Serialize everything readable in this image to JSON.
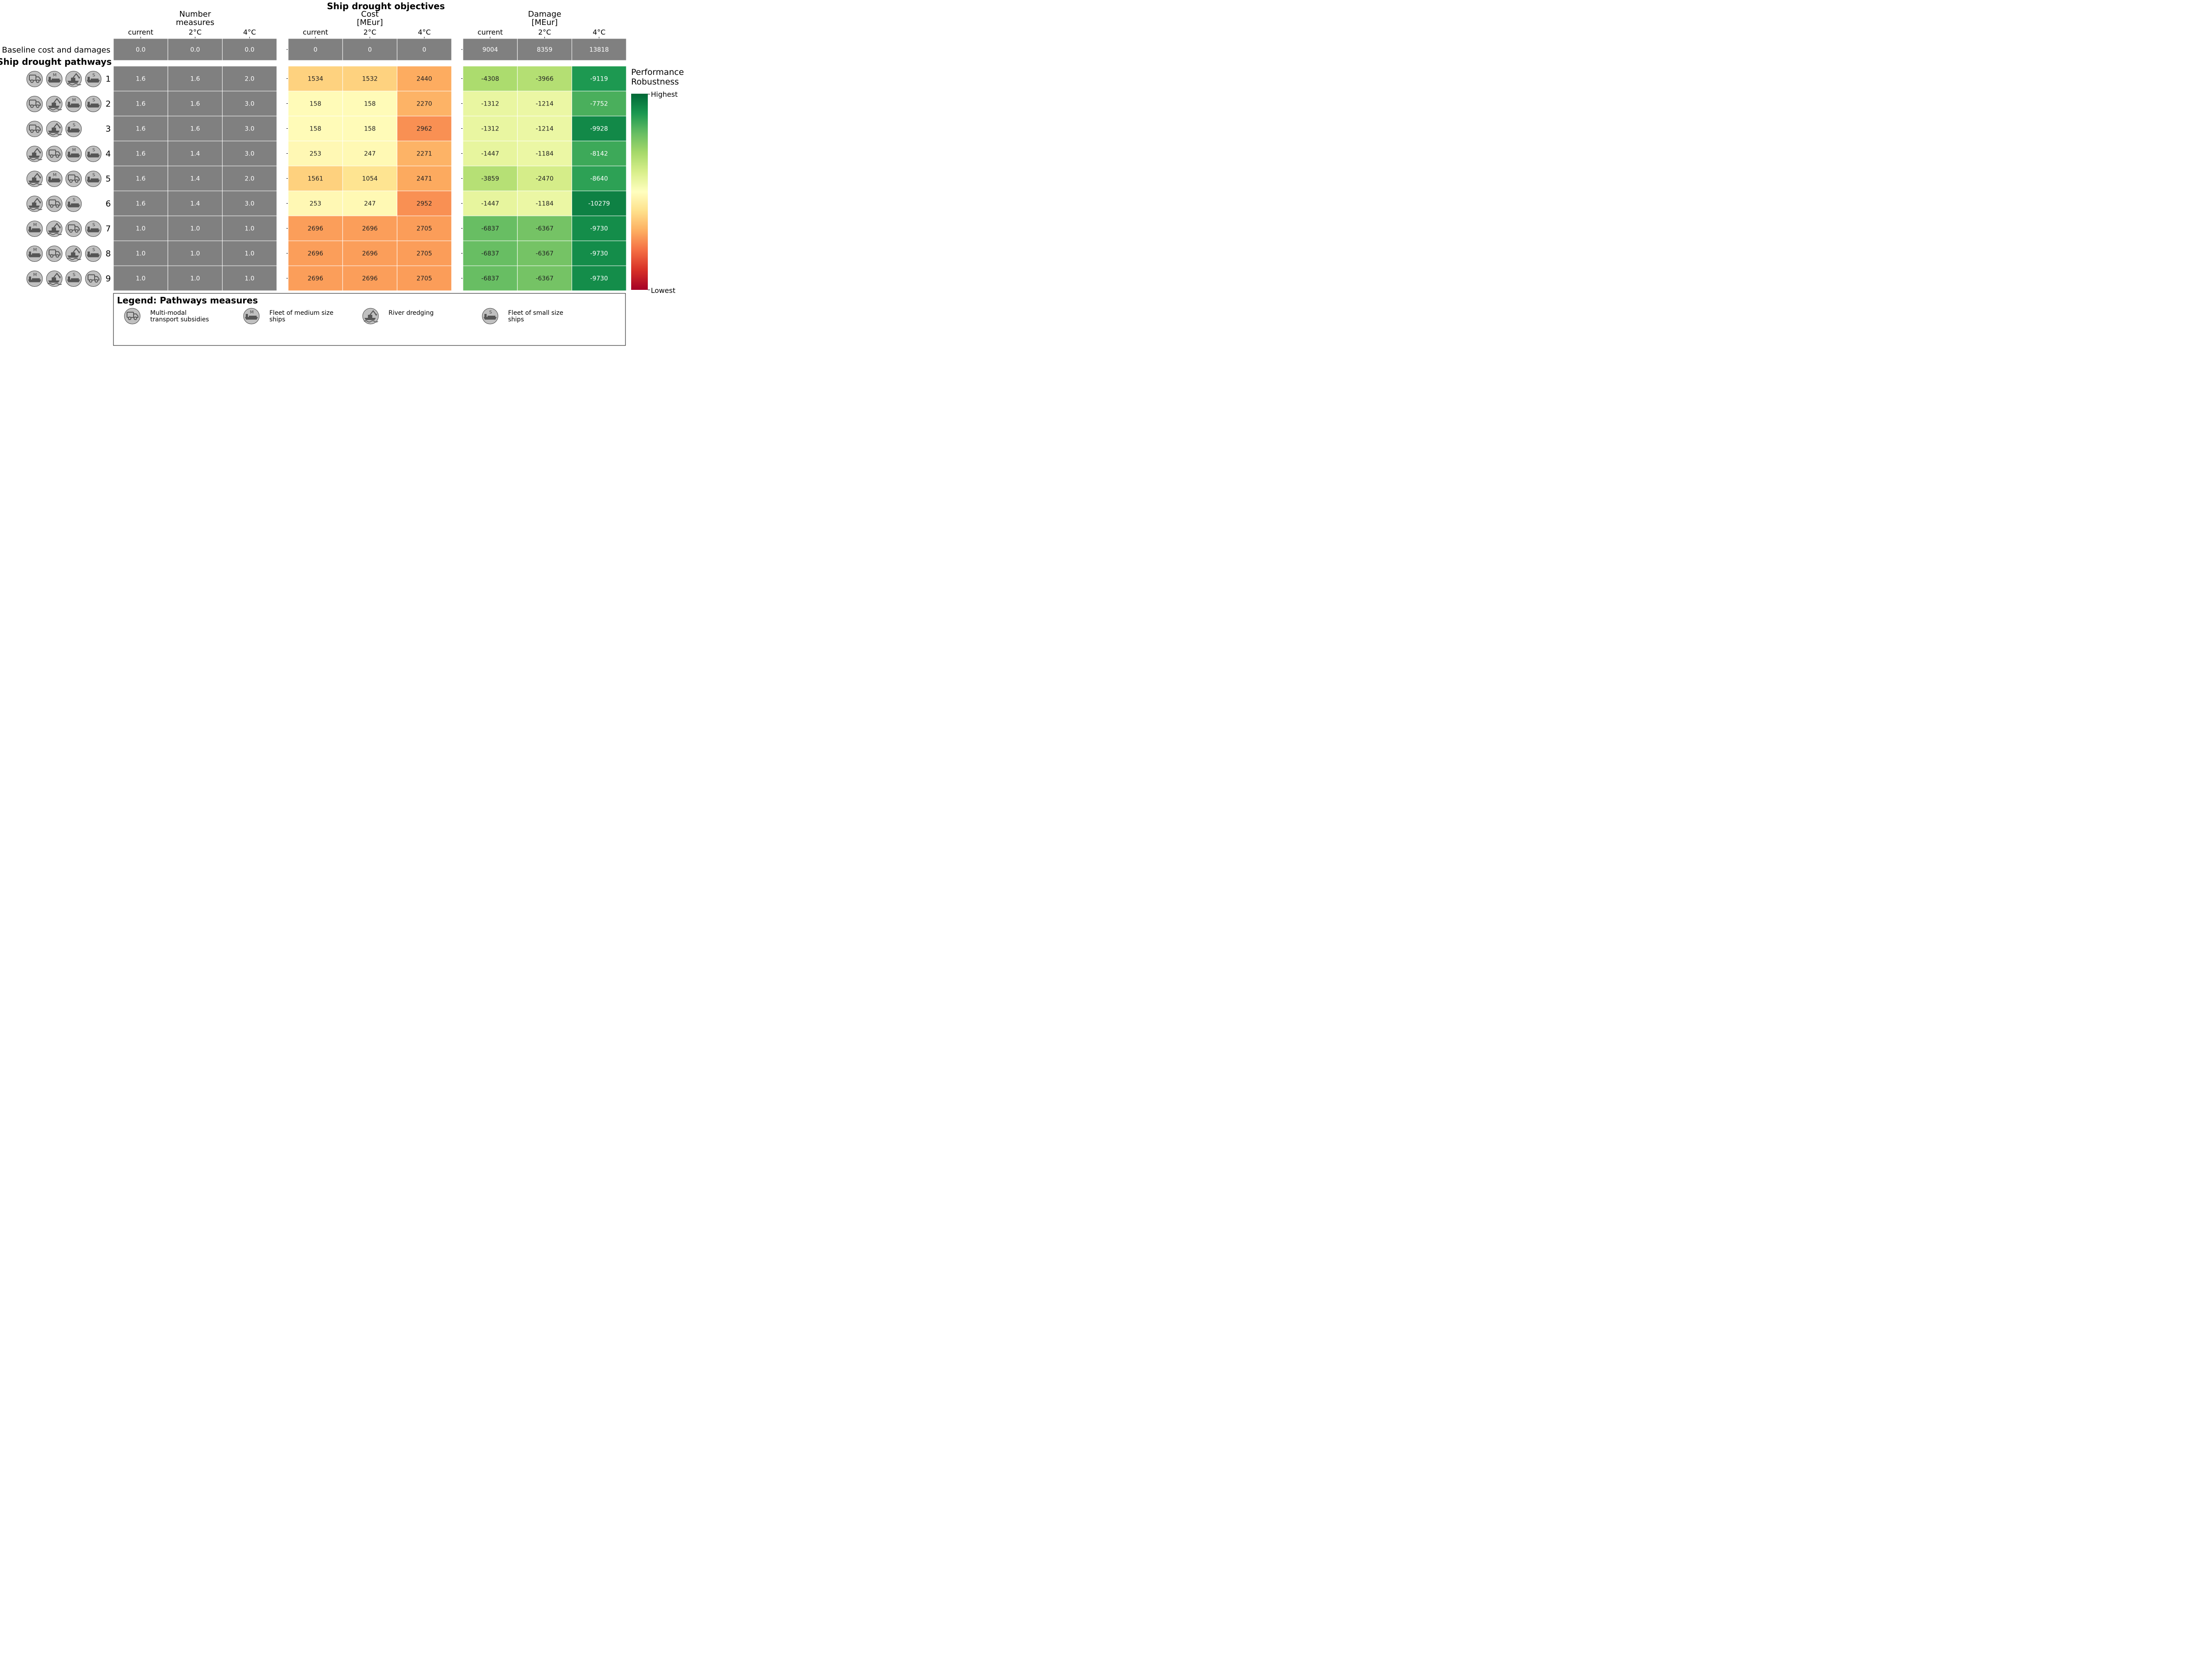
{
  "title": "Ship drought objectives",
  "row_labels": {
    "baseline": "Baseline cost and damages",
    "pathways_heading": "Ship drought pathways"
  },
  "groups": [
    {
      "id": "number",
      "title_lines": [
        "Number",
        "measures"
      ],
      "columns": [
        "current",
        "2°C",
        "4°C"
      ]
    },
    {
      "id": "cost",
      "title_lines": [
        "Cost",
        "[MEur]"
      ],
      "columns": [
        "current",
        "2°C",
        "4°C"
      ]
    },
    {
      "id": "damage",
      "title_lines": [
        "Damage",
        "[MEur]"
      ],
      "columns": [
        "current",
        "2°C",
        "4°C"
      ]
    }
  ],
  "chart_data": {
    "type": "heatmap",
    "title": "Ship drought objectives",
    "row_names": [
      "1",
      "2",
      "3",
      "4",
      "5",
      "6",
      "7",
      "8",
      "9"
    ],
    "columns": [
      "current",
      "2°C",
      "4°C"
    ],
    "baseline": {
      "label": "Baseline cost and damages",
      "number_measures": [
        "0.0",
        "0.0",
        "0.0"
      ],
      "cost": [
        "0",
        "0",
        "0"
      ],
      "damage": [
        "9004",
        "8359",
        "13818"
      ]
    },
    "number_measures": [
      [
        "1.6",
        "1.6",
        "2.0"
      ],
      [
        "1.6",
        "1.6",
        "3.0"
      ],
      [
        "1.6",
        "1.6",
        "3.0"
      ],
      [
        "1.6",
        "1.4",
        "3.0"
      ],
      [
        "1.6",
        "1.4",
        "2.0"
      ],
      [
        "1.6",
        "1.4",
        "3.0"
      ],
      [
        "1.0",
        "1.0",
        "1.0"
      ],
      [
        "1.0",
        "1.0",
        "1.0"
      ],
      [
        "1.0",
        "1.0",
        "1.0"
      ]
    ],
    "cost": [
      [
        1534,
        1532,
        2440
      ],
      [
        158,
        158,
        2270
      ],
      [
        158,
        158,
        2962
      ],
      [
        253,
        247,
        2271
      ],
      [
        1561,
        1054,
        2471
      ],
      [
        253,
        247,
        2952
      ],
      [
        2696,
        2696,
        2705
      ],
      [
        2696,
        2696,
        2705
      ],
      [
        2696,
        2696,
        2705
      ]
    ],
    "damage": [
      [
        -4308,
        -3966,
        -9119
      ],
      [
        -1312,
        -1214,
        -7752
      ],
      [
        -1312,
        -1214,
        -9928
      ],
      [
        -1447,
        -1184,
        -8142
      ],
      [
        -3859,
        -2470,
        -8640
      ],
      [
        -1447,
        -1184,
        -10279
      ],
      [
        -6837,
        -6367,
        -9730
      ],
      [
        -6837,
        -6367,
        -9730
      ],
      [
        -6837,
        -6367,
        -9730
      ]
    ],
    "colorbar": {
      "title_lines": [
        "Performance",
        "Robustness"
      ],
      "high_label": "Highest",
      "low_label": "Lowest",
      "colormap": "RdYlGn"
    }
  },
  "pathways": [
    [
      "truck",
      "ship-m",
      "dredge",
      "ship-s"
    ],
    [
      "truck",
      "dredge",
      "ship-m",
      "ship-s"
    ],
    [
      "truck",
      "dredge",
      "ship-s"
    ],
    [
      "dredge",
      "truck",
      "ship-m",
      "ship-s"
    ],
    [
      "dredge",
      "ship-m",
      "truck",
      "ship-s"
    ],
    [
      "dredge",
      "truck",
      "ship-s"
    ],
    [
      "ship-m",
      "dredge",
      "truck",
      "ship-s"
    ],
    [
      "ship-m",
      "truck",
      "dredge",
      "ship-s"
    ],
    [
      "ship-m",
      "dredge",
      "ship-s",
      "truck"
    ]
  ],
  "legend": {
    "title": "Legend: Pathways measures",
    "items": [
      {
        "icon": "truck",
        "lines": [
          "Multi-modal",
          "transport subsidies"
        ]
      },
      {
        "icon": "ship-m",
        "lines": [
          "Fleet of medium size",
          "ships"
        ]
      },
      {
        "icon": "dredge",
        "lines": [
          "River dredging"
        ]
      },
      {
        "icon": "ship-s",
        "lines": [
          "Fleet of small size",
          "ships"
        ]
      }
    ]
  },
  "colors": {
    "grey_cell": "#808080",
    "icon_fill": "#c0c0c0",
    "icon_glyph": "#555555",
    "cell_text_dark": "#222222",
    "cell_text_light": "#ffffff"
  },
  "icon_letters": {
    "ship-m": "M",
    "ship-s": "S"
  }
}
